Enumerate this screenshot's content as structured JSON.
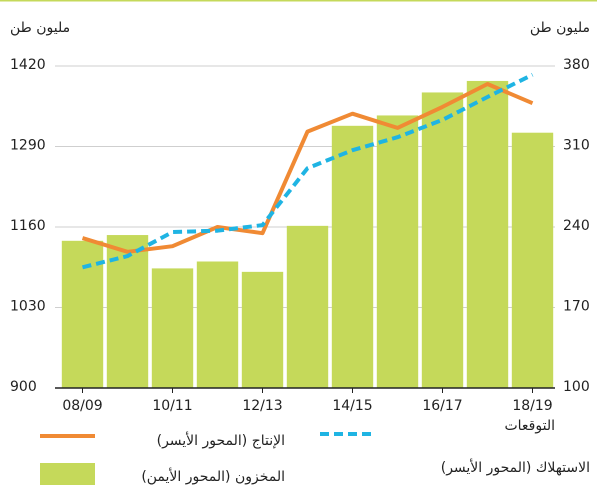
{
  "chart_data": {
    "type": "bar",
    "y_label": "مليون طن",
    "y2_label": "مليون طن",
    "categories": [
      "08/09",
      null,
      "10/11",
      null,
      "12/13",
      null,
      "14/15",
      null,
      "16/17",
      null,
      "18/19"
    ],
    "series": [
      {
        "name": "المخزون (المحور الأيمن)",
        "type": "bar",
        "axis": "y2",
        "color": "#c5d95a",
        "values": [
          228,
          233,
          204,
          210,
          201,
          241,
          328,
          337,
          357,
          367,
          322
        ]
      },
      {
        "name": "الإنتاج (المحور الأيسر)",
        "type": "line",
        "axis": "y",
        "color": "#f08a34",
        "dashed": false,
        "values": [
          1142,
          1120,
          1129,
          1160,
          1150,
          1314,
          1343,
          1320,
          1354,
          1391,
          1360
        ]
      },
      {
        "name": "الاستهلاك (المحور الأيسر)",
        "type": "line",
        "axis": "y",
        "color": "#1fb4e3",
        "dashed": true,
        "values": [
          1095,
          1113,
          1152,
          1154,
          1163,
          1255,
          1284,
          1305,
          1333,
          1370,
          1406
        ]
      }
    ],
    "annotation": "التوقعات",
    "ylim": [
      900,
      1420
    ],
    "yticks": [
      900,
      1030,
      1160,
      1290,
      1420
    ],
    "y2lim": [
      100,
      380
    ],
    "y2ticks": [
      100,
      170,
      240,
      310,
      380
    ],
    "grid": true
  }
}
